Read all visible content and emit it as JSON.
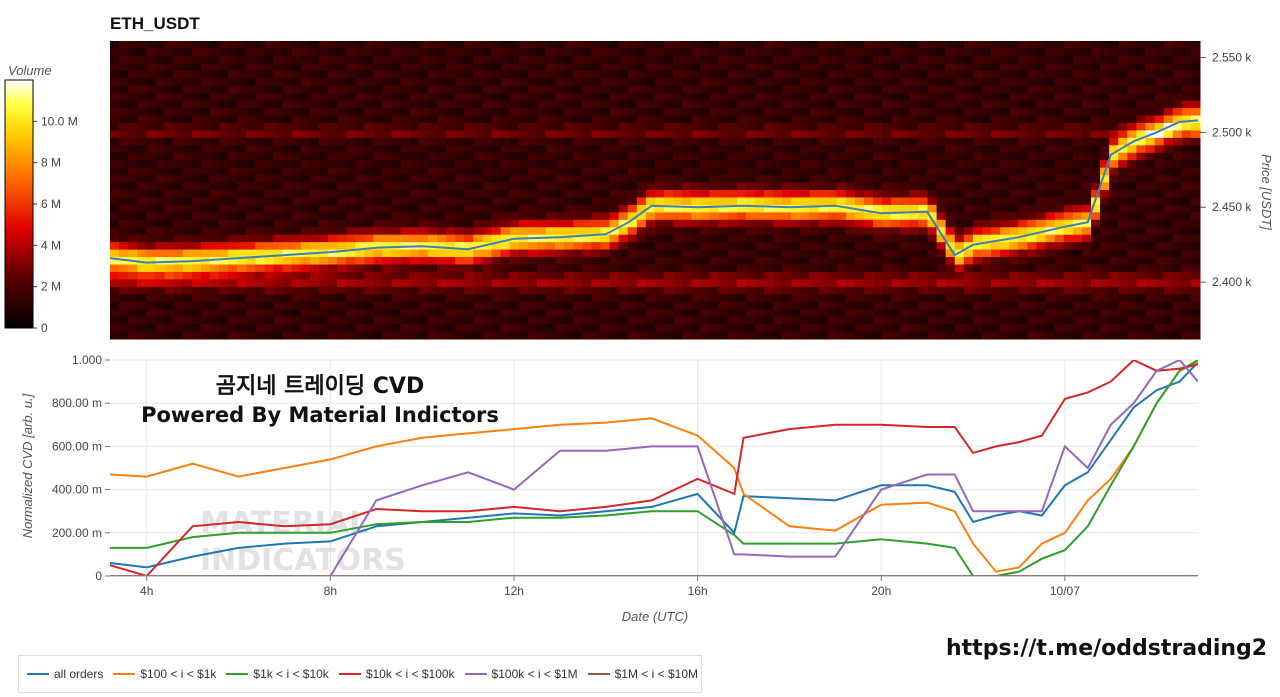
{
  "heatmap": {
    "title": "ETH_USDT",
    "colorbar_label": "Volume",
    "colorbar_ticks": [
      {
        "label": "10.0 M",
        "value": 10
      },
      {
        "label": "8 M",
        "value": 8
      },
      {
        "label": "6 M",
        "value": 6
      },
      {
        "label": "4 M",
        "value": 4
      },
      {
        "label": "2 M",
        "value": 2
      },
      {
        "label": "0",
        "value": 0
      }
    ],
    "colorbar_range": [
      0,
      12
    ],
    "price_axis_label": "Price [USDT]",
    "price_ticks": [
      {
        "label": "2.550 k",
        "value": 2550
      },
      {
        "label": "2.500 k",
        "value": 2500
      },
      {
        "label": "2.450 k",
        "value": 2450
      },
      {
        "label": "2.400 k",
        "value": 2400
      }
    ],
    "price_range": [
      2362,
      2561
    ]
  },
  "overlay": {
    "line1": "곰지네 트레이딩 CVD",
    "line2": "Powered By Material Indictors",
    "telegram": "https://t.me/oddstrading2",
    "watermark_line1": "MATERIAL",
    "watermark_line2": "INDICATORS"
  },
  "chart_data": [
    {
      "type": "line",
      "title": "ETH_USDT",
      "ylabel": "Price [USDT]",
      "x_hours": [
        3.2,
        4,
        5,
        6,
        7,
        8,
        9,
        10,
        11,
        12,
        13,
        14,
        14.5,
        15,
        16,
        17,
        18,
        19,
        20,
        21,
        21.6,
        22,
        23,
        24,
        24.5,
        25,
        25.5,
        26,
        26.5,
        26.9
      ],
      "values": [
        2416,
        2413,
        2414,
        2416,
        2418,
        2420,
        2423,
        2424,
        2422,
        2429,
        2430,
        2432,
        2440,
        2451,
        2450,
        2451,
        2450,
        2451,
        2446,
        2447,
        2418,
        2425,
        2430,
        2437,
        2440,
        2485,
        2494,
        2500,
        2507,
        2508
      ],
      "ylim": [
        2362,
        2561
      ]
    },
    {
      "type": "line",
      "xlabel": "Date (UTC)",
      "ylabel": "Normalized CVD [arb. u.]",
      "ylim": [
        0,
        1000
      ],
      "xlim": [
        3.2,
        26.9
      ],
      "x_ticks": [
        {
          "label": "4h",
          "value": 4
        },
        {
          "label": "8h",
          "value": 8
        },
        {
          "label": "12h",
          "value": 12
        },
        {
          "label": "16h",
          "value": 16
        },
        {
          "label": "20h",
          "value": 20
        },
        {
          "label": "10/07",
          "value": 24
        }
      ],
      "y_ticks": [
        {
          "label": "1.000",
          "value": 1000
        },
        {
          "label": "800.00 m",
          "value": 800
        },
        {
          "label": "600.00 m",
          "value": 600
        },
        {
          "label": "400.00 m",
          "value": 400
        },
        {
          "label": "200.00 m",
          "value": 200
        },
        {
          "label": "0",
          "value": 0
        }
      ],
      "x": [
        3.2,
        4,
        5,
        6,
        7,
        8,
        9,
        10,
        11,
        12,
        13,
        14,
        15,
        16,
        16.8,
        17,
        18,
        19,
        20,
        21,
        21.6,
        22,
        22.5,
        23,
        23.5,
        24,
        24.5,
        25,
        25.5,
        26,
        26.5,
        26.9
      ],
      "series": [
        {
          "name": "all orders",
          "color": "#1f77b4",
          "values": [
            60,
            40,
            90,
            130,
            150,
            160,
            230,
            250,
            270,
            290,
            280,
            300,
            320,
            380,
            200,
            370,
            360,
            350,
            420,
            420,
            390,
            250,
            280,
            300,
            280,
            420,
            480,
            630,
            780,
            860,
            900,
            990
          ]
        },
        {
          "name": "$100 < i < $1k",
          "color": "#ff7f0e",
          "values": [
            470,
            460,
            520,
            460,
            500,
            540,
            600,
            640,
            660,
            680,
            700,
            710,
            730,
            650,
            500,
            380,
            230,
            210,
            330,
            340,
            300,
            150,
            20,
            40,
            150,
            200,
            350,
            450,
            600,
            800,
            950,
            990
          ]
        },
        {
          "name": "$1k < i < $10k",
          "color": "#2ca02c",
          "values": [
            130,
            130,
            180,
            200,
            200,
            200,
            240,
            250,
            250,
            270,
            270,
            280,
            300,
            300,
            190,
            150,
            150,
            150,
            170,
            150,
            130,
            0,
            0,
            20,
            80,
            120,
            230,
            420,
            600,
            800,
            950,
            1000
          ]
        },
        {
          "name": "$10k < i < $100k",
          "color": "#d62728",
          "values": [
            50,
            0,
            230,
            250,
            230,
            240,
            310,
            300,
            300,
            320,
            300,
            320,
            350,
            450,
            380,
            640,
            680,
            700,
            700,
            690,
            690,
            570,
            600,
            620,
            650,
            820,
            850,
            900,
            1000,
            950,
            960,
            980
          ]
        },
        {
          "name": "$100k < i < $1M",
          "color": "#9467bd",
          "values": [
            0,
            0,
            0,
            0,
            0,
            0,
            350,
            420,
            480,
            400,
            580,
            580,
            600,
            600,
            100,
            100,
            90,
            90,
            400,
            470,
            470,
            300,
            300,
            300,
            300,
            600,
            500,
            700,
            800,
            950,
            1000,
            900
          ]
        },
        {
          "name": "$1M < i < $10M",
          "color": "#8c564b",
          "values": [
            0,
            0,
            0,
            0,
            0,
            0,
            0,
            0,
            0,
            0,
            0,
            0,
            0,
            0,
            0,
            0,
            0,
            0,
            0,
            0,
            0,
            0,
            0,
            0,
            0,
            0,
            0,
            0,
            0,
            0,
            0,
            0
          ]
        }
      ],
      "legend": "bottom-left",
      "grid": true
    }
  ]
}
